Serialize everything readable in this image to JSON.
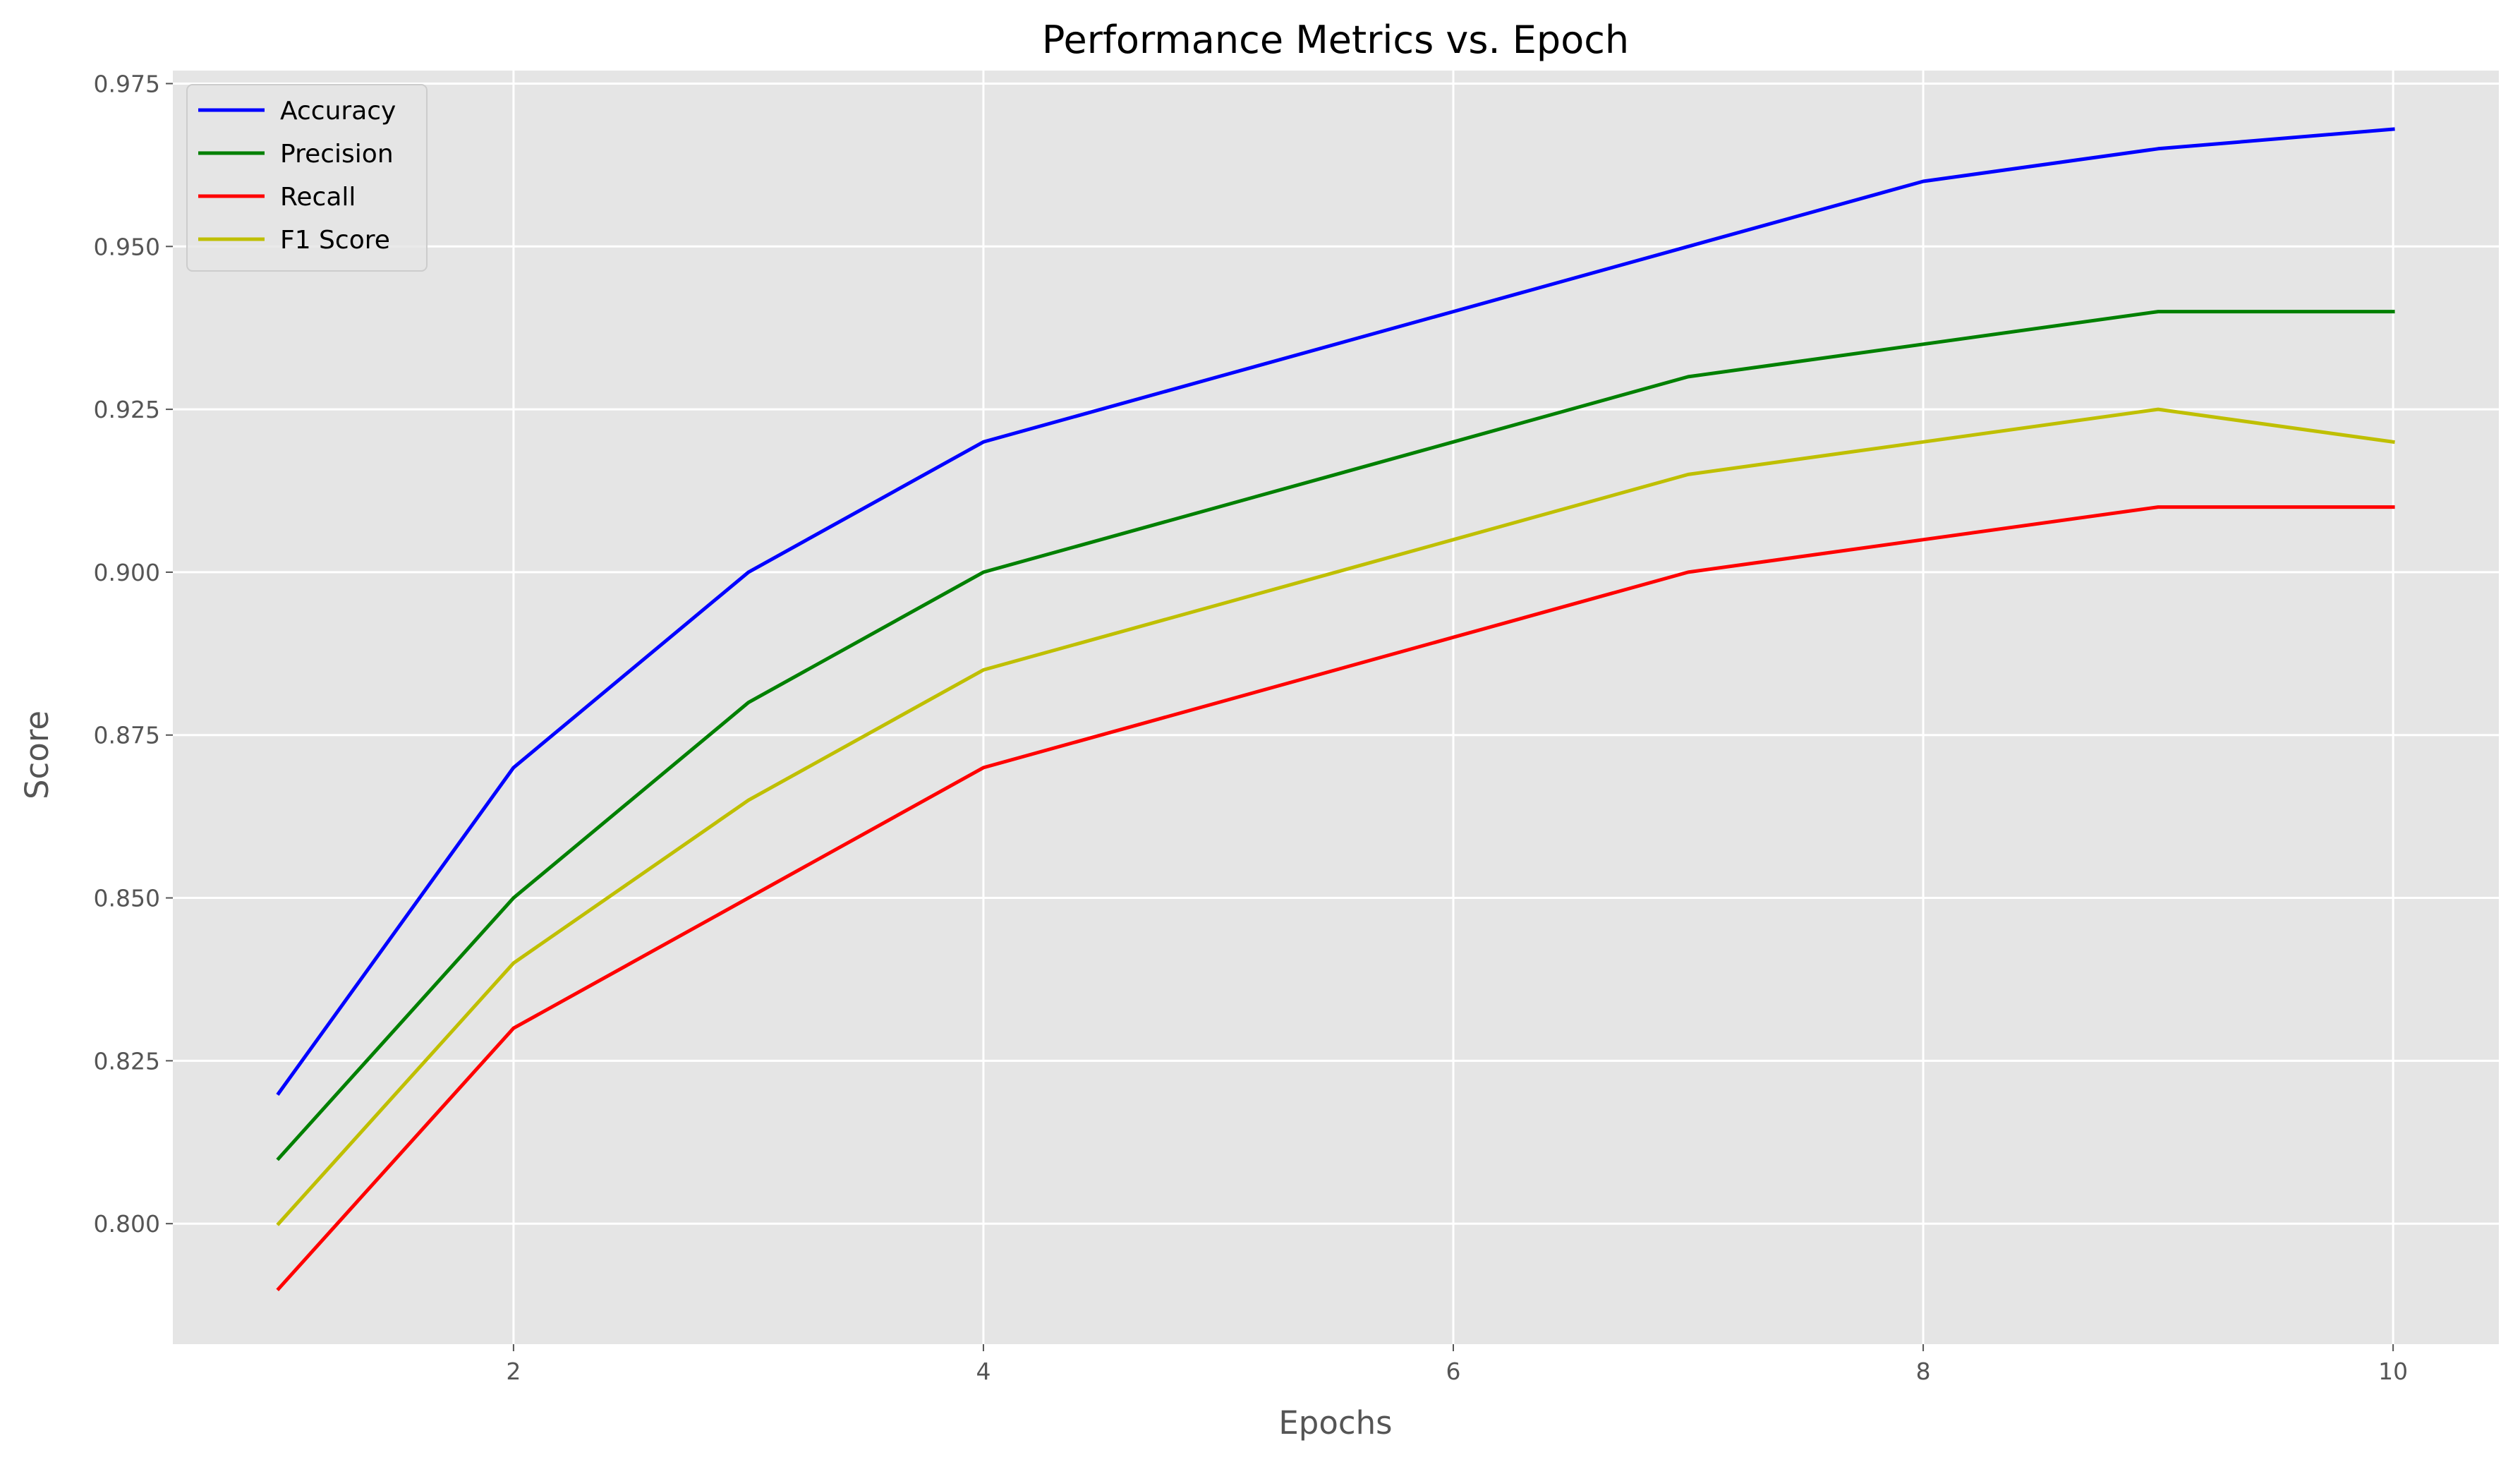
{
  "chart_data": {
    "type": "line",
    "title": "Performance Metrics vs. Epoch",
    "xlabel": "Epochs",
    "ylabel": "Score",
    "x": [
      1,
      2,
      3,
      4,
      5,
      6,
      7,
      8,
      9,
      10
    ],
    "xlim": [
      0.55,
      10.45
    ],
    "ylim": [
      0.7815,
      0.977
    ],
    "xticks": [
      2,
      4,
      6,
      8,
      10
    ],
    "yticks": [
      0.8,
      0.825,
      0.85,
      0.875,
      0.9,
      0.925,
      0.95,
      0.975
    ],
    "grid": true,
    "legend_position": "top-left",
    "series": [
      {
        "name": "Accuracy",
        "color": "#0000ff",
        "values": [
          0.82,
          0.87,
          0.9,
          0.92,
          0.93,
          0.94,
          0.95,
          0.96,
          0.965,
          0.968
        ]
      },
      {
        "name": "Precision",
        "color": "#008000",
        "values": [
          0.81,
          0.85,
          0.88,
          0.9,
          0.91,
          0.92,
          0.93,
          0.935,
          0.94,
          0.94
        ]
      },
      {
        "name": "Recall",
        "color": "#ff0000",
        "values": [
          0.79,
          0.83,
          0.85,
          0.87,
          0.88,
          0.89,
          0.9,
          0.905,
          0.91,
          0.91
        ]
      },
      {
        "name": "F1 Score",
        "color": "#bfbf00",
        "values": [
          0.8,
          0.84,
          0.865,
          0.885,
          0.895,
          0.905,
          0.915,
          0.92,
          0.925,
          0.92
        ]
      }
    ],
    "colors": {
      "plot_background": "#e5e5e5",
      "grid": "#ffffff",
      "tick_text": "#555555"
    }
  }
}
